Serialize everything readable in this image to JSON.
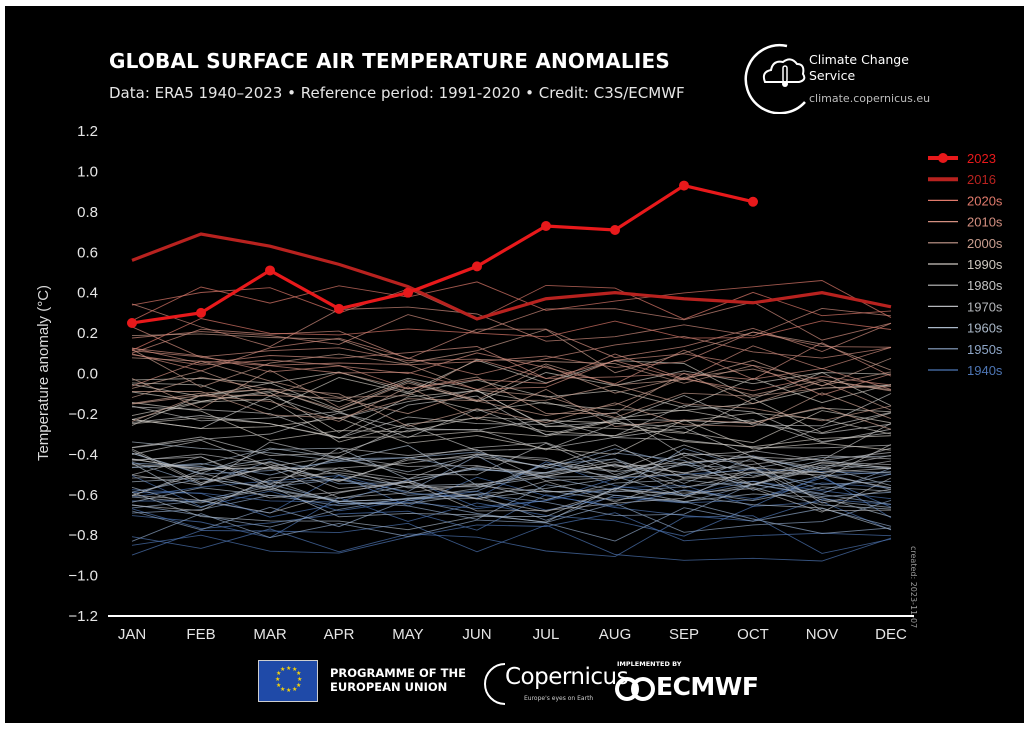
{
  "header": {
    "title": "GLOBAL SURFACE AIR TEMPERATURE ANOMALIES",
    "subtitle": "Data: ERA5 1940–2023 • Reference period: 1991-2020 • Credit: C3S/ECMWF"
  },
  "brand": {
    "c3s_name": "Climate Change Service",
    "c3s_url": "climate.copernicus.eu",
    "created": "created: 2023-11-07"
  },
  "footer": {
    "eu_text": "PROGRAMME OF THE EUROPEAN UNION",
    "copernicus_word": "Copernicus",
    "copernicus_tagline": "Europe's eyes on Earth",
    "implemented_by": "IMPLEMENTED BY",
    "ecmwf_word": "ECMWF"
  },
  "colors": {
    "background": "#000000",
    "highlight_2023": "#e8191b",
    "highlight_2016": "#b8221f",
    "text": "#ffffff",
    "axis": "#ffffff"
  },
  "chart_data": {
    "type": "line",
    "title": "GLOBAL SURFACE AIR TEMPERATURE ANOMALIES",
    "xlabel": "",
    "ylabel": "Temperature anomaly (°C)",
    "categories": [
      "JAN",
      "FEB",
      "MAR",
      "APR",
      "MAY",
      "JUN",
      "JUL",
      "AUG",
      "SEP",
      "OCT",
      "NOV",
      "DEC"
    ],
    "ylim": [
      -1.2,
      1.2
    ],
    "yticks": [
      -1.2,
      -1.0,
      -0.8,
      -0.6,
      -0.4,
      -0.2,
      0.0,
      0.2,
      0.4,
      0.6,
      0.8,
      1.0,
      1.2
    ],
    "ytick_labels": [
      "−1.2",
      "−1.0",
      "−0.8",
      "−0.6",
      "−0.4",
      "−0.2",
      "0.0",
      "0.2",
      "0.4",
      "0.6",
      "0.8",
      "1.0",
      "1.2"
    ],
    "grid": false,
    "legend_position": "right",
    "highlight_series": [
      {
        "name": "2023",
        "color": "#e8191b",
        "values": [
          0.25,
          0.3,
          0.51,
          0.32,
          0.4,
          0.53,
          0.73,
          0.71,
          0.93,
          0.85
        ]
      },
      {
        "name": "2016",
        "color": "#b8221f",
        "values": [
          0.56,
          0.69,
          0.63,
          0.54,
          0.43,
          0.27,
          0.37,
          0.4,
          0.37,
          0.35,
          0.4,
          0.33
        ]
      }
    ],
    "decades": [
      {
        "name": "2020s",
        "color": "#e07a6c",
        "base": 0.28
      },
      {
        "name": "2010s",
        "color": "#d38f80",
        "base": 0.12
      },
      {
        "name": "2000s",
        "color": "#c99e8f",
        "base": -0.02
      },
      {
        "name": "1990s",
        "color": "#cdc7bf",
        "base": -0.18
      },
      {
        "name": "1980s",
        "color": "#c2c2c2",
        "base": -0.32
      },
      {
        "name": "1970s",
        "color": "#b5b7bb",
        "base": -0.45
      },
      {
        "name": "1960s",
        "color": "#aab8c8",
        "base": -0.55
      },
      {
        "name": "1950s",
        "color": "#8ea6c7",
        "base": -0.62
      },
      {
        "name": "1940s",
        "color": "#4e76b5",
        "base": -0.68
      }
    ]
  }
}
